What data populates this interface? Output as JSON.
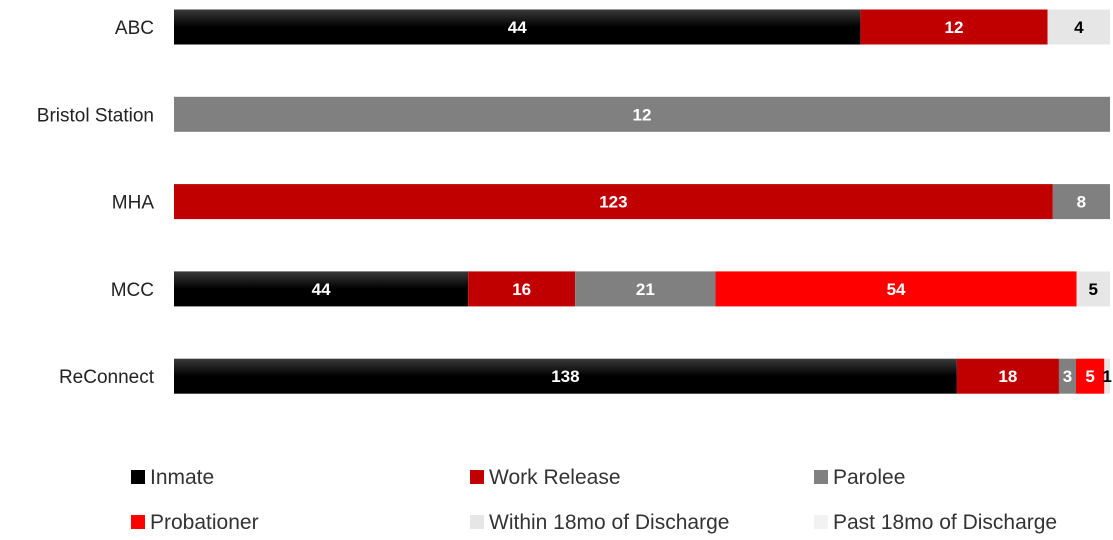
{
  "chart_data": {
    "type": "bar",
    "orientation": "horizontal",
    "stacked": "percent",
    "title": "",
    "xlabel": "",
    "ylabel": "",
    "grid": false,
    "legend_position": "bottom",
    "categories": [
      "ABC",
      "Bristol Station",
      "MHA",
      "MCC",
      "ReConnect"
    ],
    "series": [
      {
        "name": "Inmate",
        "color": "#000000",
        "label_color": "#ffffff",
        "values": [
          44,
          0,
          0,
          44,
          138
        ]
      },
      {
        "name": "Work Release",
        "color": "#c00000",
        "label_color": "#ffffff",
        "values": [
          12,
          0,
          123,
          16,
          18
        ]
      },
      {
        "name": "Parolee",
        "color": "#808080",
        "label_color": "#ffffff",
        "values": [
          0,
          12,
          8,
          21,
          3
        ]
      },
      {
        "name": "Probationer",
        "color": "#ff0000",
        "label_color": "#ffffff",
        "values": [
          0,
          0,
          0,
          54,
          5
        ]
      },
      {
        "name": "Within 18mo of Discharge",
        "color": "#e6e6e6",
        "label_color": "#000000",
        "values": [
          4,
          0,
          0,
          5,
          1
        ]
      },
      {
        "name": "Past 18mo of Discharge",
        "color": "#f2f2f2",
        "label_color": "#000000",
        "values": [
          0,
          0,
          0,
          0,
          0
        ]
      }
    ]
  }
}
